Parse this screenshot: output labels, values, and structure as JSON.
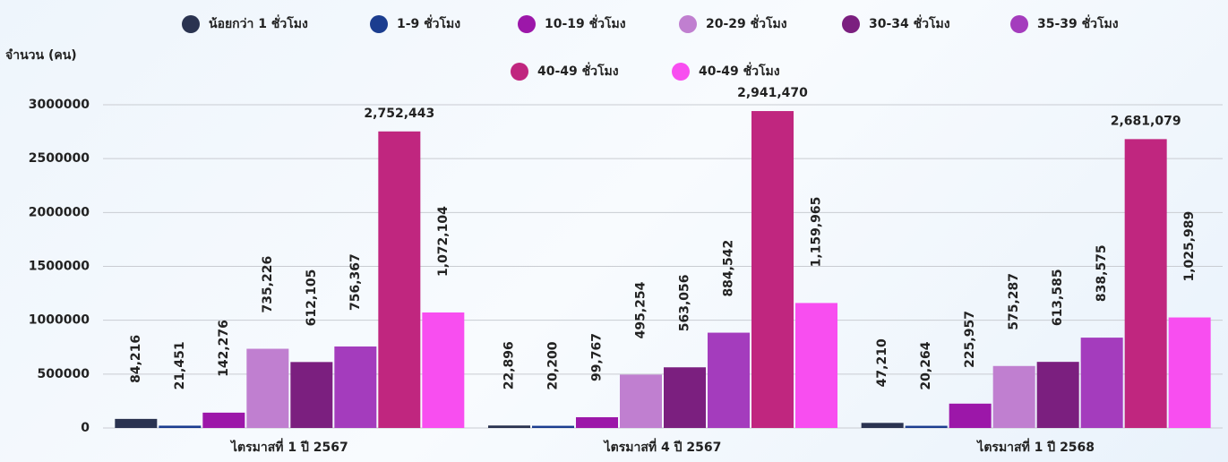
{
  "chart_data": {
    "type": "bar",
    "y_label": "จำนวน (คน)",
    "categories": [
      "ไตรมาสที่ 1 ปี 2567",
      "ไตรมาสที่ 4 ปี 2567",
      "ไตรมาสที่ 1 ปี 2568"
    ],
    "series": [
      {
        "name": "น้อยกว่า 1 ชั่วโมง",
        "color": "#2a3350",
        "values": [
          84216,
          22896,
          47210
        ],
        "value_labels": [
          "84,216",
          "22,896",
          "47,210"
        ]
      },
      {
        "name": "1-9 ชั่วโมง",
        "color": "#1b3d8f",
        "values": [
          21451,
          20200,
          20264
        ],
        "value_labels": [
          "21,451",
          "20,200",
          "20,264"
        ]
      },
      {
        "name": "10-19 ชั่วโมง",
        "color": "#9c17a9",
        "values": [
          142276,
          99767,
          225957
        ],
        "value_labels": [
          "142,276",
          "99,767",
          "225,957"
        ]
      },
      {
        "name": "20-29 ชั่วโมง",
        "color": "#c07fd0",
        "values": [
          735226,
          495254,
          575287
        ],
        "value_labels": [
          "735,226",
          "495,254",
          "575,287"
        ]
      },
      {
        "name": "30-34 ชั่วโมง",
        "color": "#7b1f7f",
        "values": [
          612105,
          563056,
          613585
        ],
        "value_labels": [
          "612,105",
          "563,056",
          "613,585"
        ]
      },
      {
        "name": "35-39 ชั่วโมง",
        "color": "#a43cbd",
        "values": [
          756367,
          884542,
          838575
        ],
        "value_labels": [
          "756,367",
          "884,542",
          "838,575"
        ]
      },
      {
        "name": "40-49 ชั่วโมง",
        "color": "#c0267f",
        "values": [
          2752443,
          2941470,
          2681079
        ],
        "value_labels": [
          "2,752,443",
          "2,941,470",
          "2,681,079"
        ]
      },
      {
        "name": "40-49 ชั่วโมง",
        "color": "#f84ef0",
        "values": [
          1072104,
          1159965,
          1025989
        ],
        "value_labels": [
          "1,072,104",
          "1,159,965",
          "1,025,989"
        ]
      }
    ],
    "ylim": [
      0,
      3000000
    ],
    "yticks": [
      0,
      500000,
      1000000,
      1500000,
      2000000,
      2500000,
      3000000
    ],
    "grid": true
  }
}
